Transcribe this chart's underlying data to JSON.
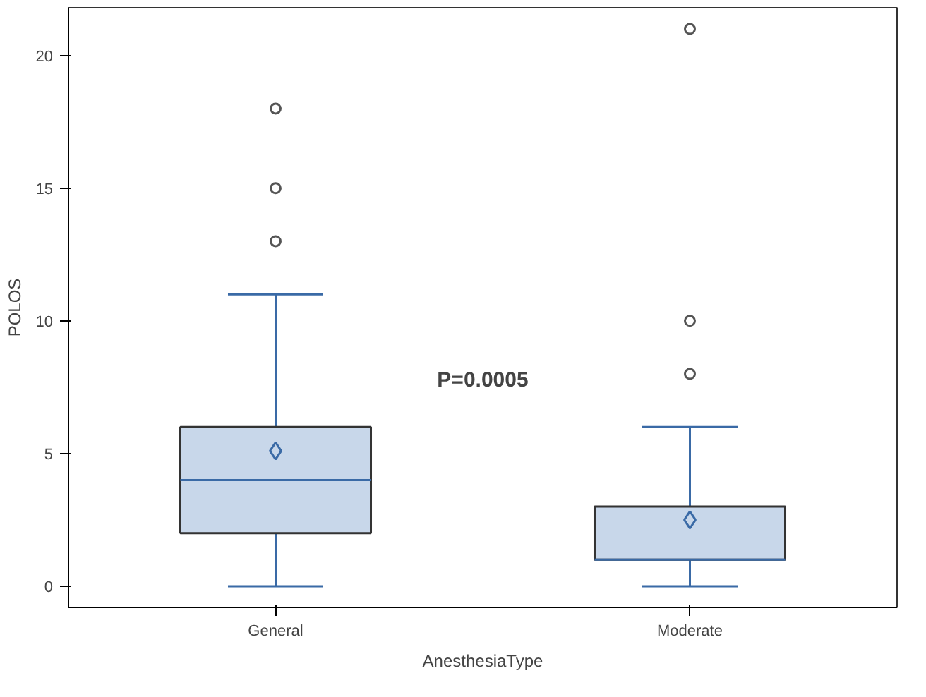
{
  "chart_data": {
    "type": "box",
    "xlabel": "AnesthesiaType",
    "ylabel": "POLOS",
    "categories": [
      "General",
      "Moderate"
    ],
    "boxes": [
      {
        "low": 0,
        "q1": 2,
        "median": 4,
        "q3": 6,
        "high": 11,
        "mean": 5.1,
        "outliers": [
          13,
          15,
          18
        ]
      },
      {
        "low": 0,
        "q1": 1,
        "median": 1,
        "q3": 3,
        "high": 6,
        "mean": 2.5,
        "outliers": [
          8,
          10,
          21
        ]
      }
    ],
    "color": "#c8d7ea",
    "ylim": [
      -0.8,
      21.8
    ],
    "yticks": [
      0,
      5,
      10,
      15,
      20
    ],
    "grid": false,
    "annotations": [
      "P=0.0005"
    ]
  }
}
